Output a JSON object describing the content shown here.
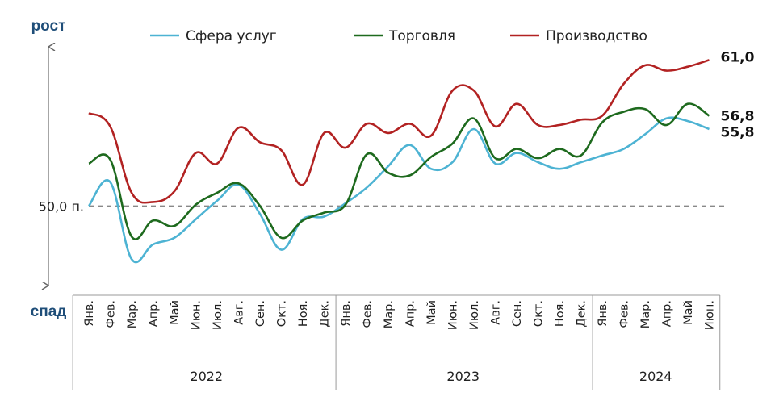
{
  "chart_data": {
    "type": "line",
    "y_top_label": "рост",
    "y_bottom_label": "спад",
    "reference": {
      "value": 50.0,
      "label": "50,0 п."
    },
    "ylim": [
      44,
      62
    ],
    "categories": [
      "Янв.",
      "Фев.",
      "Мар.",
      "Апр.",
      "Май",
      "Июн.",
      "Июл.",
      "Авг.",
      "Сен.",
      "Окт.",
      "Ноя.",
      "Дек.",
      "Янв.",
      "Фев.",
      "Мар.",
      "Апр.",
      "Май",
      "Июн.",
      "Июл.",
      "Авг.",
      "Сен.",
      "Окт.",
      "Ноя.",
      "Дек.",
      "Янв.",
      "Фев.",
      "Мар.",
      "Апр.",
      "Май",
      "Июн."
    ],
    "year_groups": [
      {
        "label": "2022",
        "count": 12
      },
      {
        "label": "2023",
        "count": 12
      },
      {
        "label": "2024",
        "count": 6
      }
    ],
    "series": [
      {
        "name": "Сфера услуг",
        "color": "#4db3d3",
        "values": [
          50.0,
          51.8,
          46.0,
          47.1,
          47.6,
          49.0,
          50.4,
          51.6,
          49.4,
          46.7,
          49.0,
          49.2,
          50.2,
          51.4,
          53.0,
          54.6,
          52.8,
          53.3,
          55.8,
          53.2,
          54.0,
          53.3,
          52.8,
          53.3,
          53.8,
          54.3,
          55.4,
          56.6,
          56.4,
          55.8
        ],
        "end_label": "55,8"
      },
      {
        "name": "Торговля",
        "color": "#1e6a1e",
        "values": [
          53.2,
          53.5,
          47.7,
          48.9,
          48.5,
          50.1,
          51.0,
          51.7,
          50.0,
          47.6,
          48.9,
          49.5,
          50.1,
          53.9,
          52.5,
          52.3,
          53.7,
          54.7,
          56.6,
          53.6,
          54.3,
          53.6,
          54.3,
          53.8,
          56.3,
          57.1,
          57.3,
          56.1,
          57.7,
          56.8
        ],
        "end_label": "56,8"
      },
      {
        "name": "Производство",
        "color": "#b22222",
        "values": [
          57.0,
          56.0,
          51.0,
          50.3,
          51.1,
          54.0,
          53.2,
          55.9,
          54.8,
          54.2,
          51.6,
          55.5,
          54.4,
          56.2,
          55.5,
          56.2,
          55.3,
          58.7,
          58.7,
          56.0,
          57.7,
          56.1,
          56.1,
          56.5,
          56.8,
          59.2,
          60.6,
          60.2,
          60.5,
          61.0
        ],
        "end_label": "61,0"
      }
    ]
  }
}
